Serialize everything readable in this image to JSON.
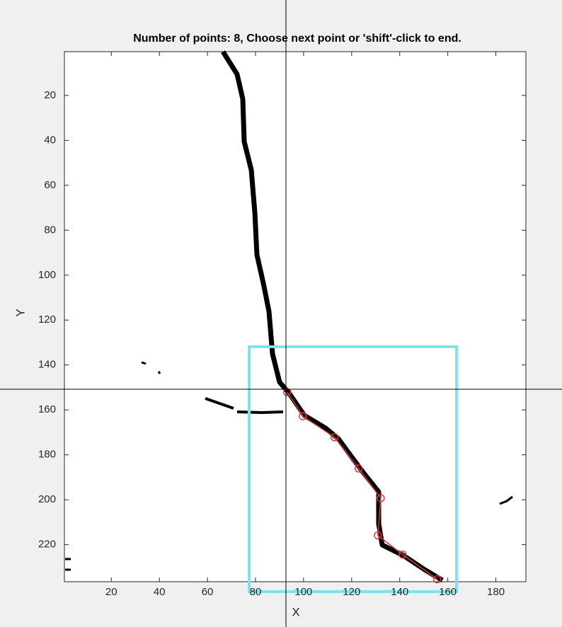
{
  "chart_data": {
    "type": "scatter",
    "title": "Number of points: 8, Choose next point or 'shift'-click to end.",
    "xlabel": "X",
    "ylabel": "Y",
    "xlim": [
      0.5,
      192.5
    ],
    "ylim": [
      0.5,
      236.5
    ],
    "y_reversed": true,
    "xticks": [
      20,
      40,
      60,
      80,
      100,
      120,
      140,
      160,
      180
    ],
    "yticks": [
      20,
      40,
      60,
      80,
      100,
      120,
      140,
      160,
      180,
      200,
      220
    ],
    "color": "#d03a3a",
    "x": [
      93.2,
      99.7,
      112.9,
      122.9,
      132.1,
      130.9,
      141.2,
      155.6
    ],
    "y": [
      152.1,
      162.8,
      172.2,
      186.1,
      199.3,
      215.9,
      224.4,
      235.4
    ]
  }
}
